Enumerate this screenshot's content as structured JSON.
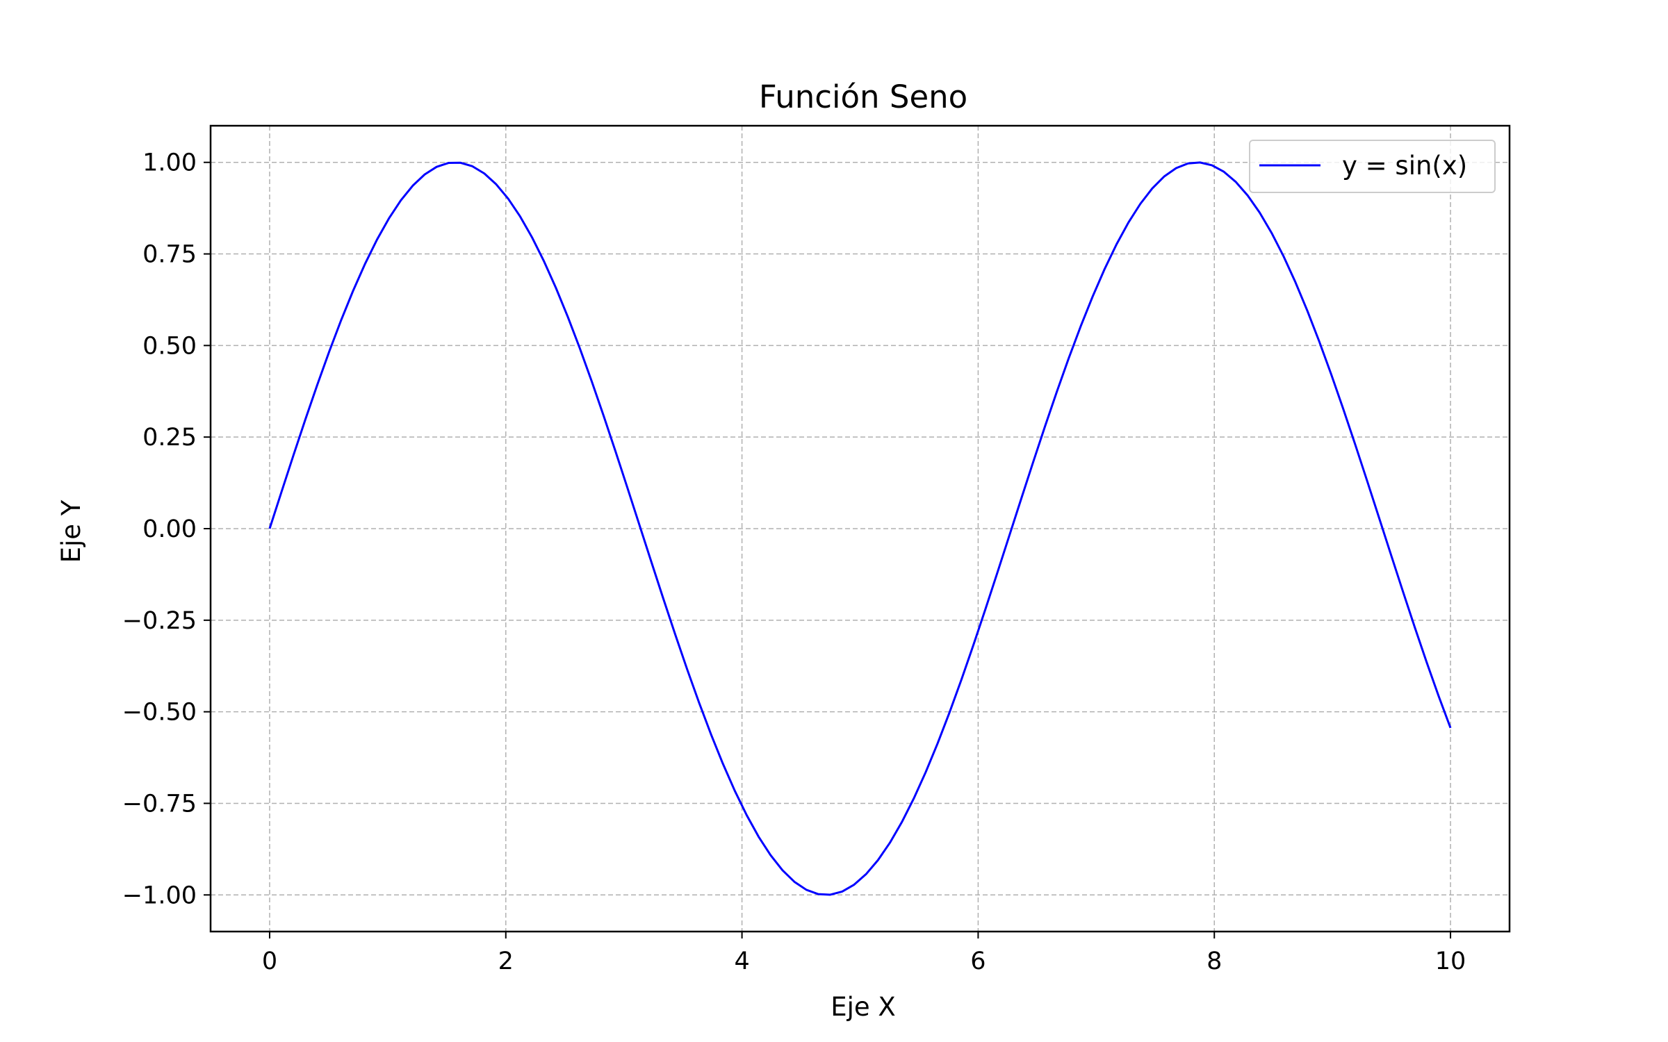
{
  "chart_data": {
    "type": "line",
    "title": "Función Seno",
    "xlabel": "Eje X",
    "ylabel": "Eje Y",
    "xlim": [
      -0.5,
      10.5
    ],
    "ylim": [
      -1.1,
      1.1
    ],
    "xticks": [
      0,
      2,
      4,
      6,
      8,
      10
    ],
    "xtick_labels": [
      "0",
      "2",
      "4",
      "6",
      "8",
      "10"
    ],
    "yticks": [
      1.0,
      0.75,
      0.5,
      0.25,
      0.0,
      -0.25,
      -0.5,
      -0.75,
      -1.0
    ],
    "ytick_labels": [
      "1.00",
      "0.75",
      "0.50",
      "0.25",
      "0.00",
      "−0.25",
      "−0.50",
      "−0.75",
      "−1.00"
    ],
    "grid": true,
    "legend_position": "top-right",
    "series": [
      {
        "name": "y = sin(x)",
        "color": "#0000ff",
        "x": [
          0.0,
          0.5,
          1.0,
          1.5,
          1.57,
          2.0,
          2.5,
          3.0,
          3.14,
          3.5,
          4.0,
          4.5,
          4.71,
          5.0,
          5.5,
          6.0,
          6.28,
          6.5,
          7.0,
          7.5,
          7.85,
          8.0,
          8.5,
          9.0,
          9.42,
          9.5,
          10.0
        ],
        "y": [
          0.0,
          0.48,
          0.84,
          1.0,
          1.0,
          0.91,
          0.6,
          0.14,
          0.0,
          -0.35,
          -0.76,
          -0.98,
          -1.0,
          -0.96,
          -0.71,
          -0.28,
          0.0,
          0.22,
          0.66,
          0.94,
          1.0,
          0.99,
          0.8,
          0.41,
          0.0,
          -0.08,
          -0.54
        ]
      }
    ]
  },
  "colors": {
    "line": "#0000ff",
    "grid": "#b0b0b0",
    "axes": "#000000",
    "background": "#ffffff"
  }
}
